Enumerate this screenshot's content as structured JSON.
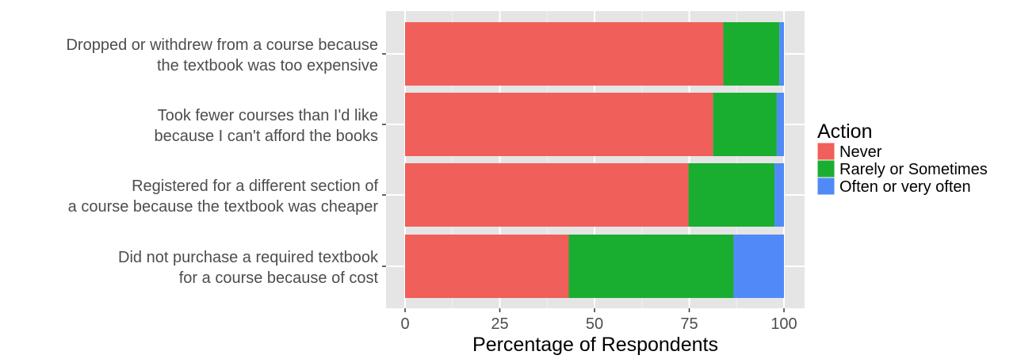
{
  "chart_data": {
    "type": "bar",
    "orientation": "horizontal",
    "stacked": true,
    "title": "",
    "xlabel": "Percentage of Respondents",
    "ylabel": "",
    "xlim": [
      0,
      100
    ],
    "xticks": [
      0,
      25,
      50,
      75,
      100
    ],
    "grid": true,
    "legend_position": "right",
    "categories": [
      [
        "Dropped or withdrew from a course because",
        "the textbook was too expensive"
      ],
      [
        "Took fewer courses than I'd like",
        "because I can't afford the books"
      ],
      [
        "Registered for a different section of",
        "a course because the textbook was cheaper"
      ],
      [
        "Did not purchase a required textbook",
        "for a course because of cost"
      ]
    ],
    "legend_title": "Action",
    "series": [
      {
        "name": "Never",
        "color": "#f05f5a",
        "values": [
          84,
          81.3,
          74.8,
          43.2
        ]
      },
      {
        "name": "Rarely or Sometimes",
        "color": "#1aae30",
        "values": [
          14.8,
          16.8,
          22.7,
          43.5
        ]
      },
      {
        "name": "Often or very often",
        "color": "#518af8",
        "values": [
          1.2,
          1.9,
          2.5,
          13.3
        ]
      }
    ]
  }
}
